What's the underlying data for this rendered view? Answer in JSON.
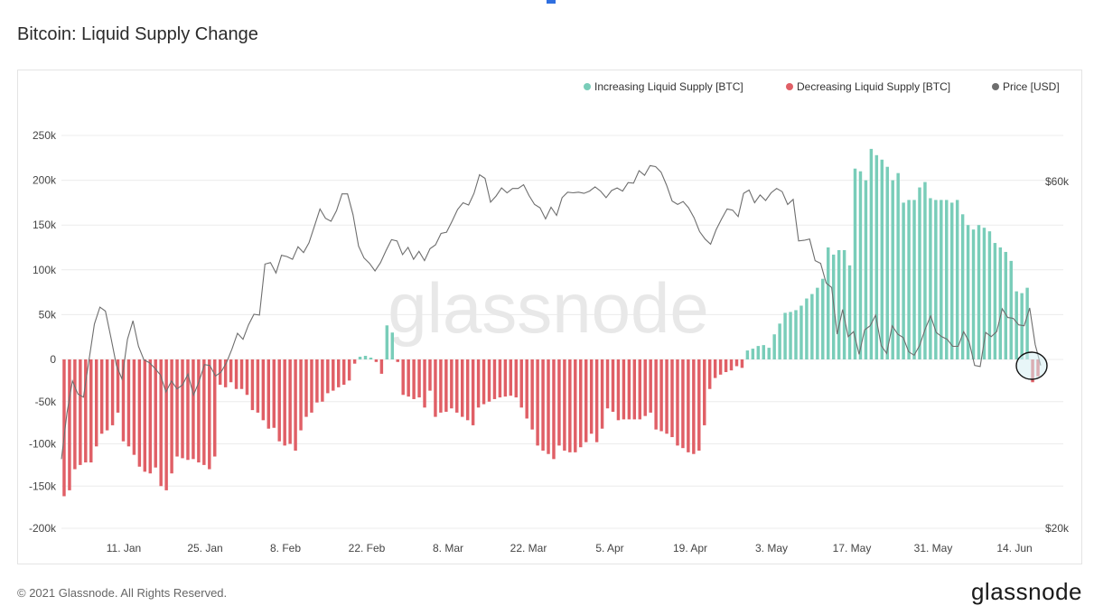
{
  "page": {
    "title": "Bitcoin: Liquid Supply Change",
    "copyright": "© 2021 Glassnode. All Rights Reserved.",
    "brand": "glassnode",
    "watermark": "glassnode"
  },
  "colors": {
    "increase": "#79cdb9",
    "decrease": "#e05f66",
    "price": "#6e6e6e",
    "grid": "#ececec",
    "highlight": "#d6eef3"
  },
  "chart_data": {
    "type": "bar",
    "title": "Bitcoin: Liquid Supply Change",
    "x_ticks": [
      "11. Jan",
      "25. Jan",
      "8. Feb",
      "22. Feb",
      "8. Mar",
      "22. Mar",
      "5. Apr",
      "19. Apr",
      "3. May",
      "17. May",
      "31. May",
      "14. Jun"
    ],
    "y_left": {
      "ticks": [
        "250k",
        "200k",
        "150k",
        "100k",
        "50k",
        "0",
        "-50k",
        "-100k",
        "-150k",
        "-200k"
      ],
      "range": [
        -200000,
        250000
      ]
    },
    "y_right": {
      "ticks": [
        "$60k",
        "$20k"
      ],
      "range": [
        20000,
        60000
      ],
      "scale": "log"
    },
    "legend": {
      "position": "top-right",
      "items": [
        "Increasing Liquid Supply [BTC]",
        "Decreasing Liquid Supply [BTC]",
        "Price [USD]"
      ]
    },
    "series": [
      {
        "name": "Liquid Supply Change [BTC]",
        "values": [
          -162000,
          -155000,
          -130000,
          -125000,
          -122000,
          -122000,
          -103000,
          -88000,
          -84000,
          -78000,
          -63000,
          -97000,
          -103000,
          -113000,
          -127000,
          -133000,
          -135000,
          -128000,
          -150000,
          -155000,
          -135000,
          -115000,
          -117000,
          -119000,
          -118000,
          -122000,
          -125000,
          -130000,
          -115000,
          -30000,
          -33000,
          -27000,
          -35000,
          -35000,
          -42000,
          -60000,
          -63000,
          -72000,
          -82000,
          -81000,
          -97000,
          -102000,
          -100000,
          -108000,
          -84000,
          -68000,
          -63000,
          -51000,
          -50000,
          -40000,
          -37000,
          -33000,
          -30000,
          -25000,
          -5000,
          3000,
          4000,
          2000,
          -3000,
          -17000,
          38000,
          30000,
          -3000,
          -42000,
          -44000,
          -47000,
          -45000,
          -57000,
          -37000,
          -68000,
          -63000,
          -62000,
          -58000,
          -63000,
          -68000,
          -72000,
          -78000,
          -57000,
          -53000,
          -50000,
          -47000,
          -45000,
          -44000,
          -43000,
          -45000,
          -57000,
          -70000,
          -83000,
          -102000,
          -108000,
          -112000,
          -118000,
          -102000,
          -108000,
          -110000,
          -110000,
          -104000,
          -98000,
          -88000,
          -98000,
          -82000,
          -58000,
          -62000,
          -72000,
          -71000,
          -71000,
          -71000,
          -71000,
          -67000,
          -63000,
          -83000,
          -85000,
          -88000,
          -92000,
          -102000,
          -105000,
          -110000,
          -112000,
          -108000,
          -78000,
          -35000,
          -22000,
          -18000,
          -15000,
          -13000,
          -8000,
          -10000,
          10000,
          12000,
          15000,
          16000,
          13000,
          28000,
          40000,
          52000,
          53000,
          55000,
          60000,
          68000,
          73000,
          80000,
          90000,
          125000,
          117000,
          122000,
          122000,
          105000,
          213000,
          210000,
          200000,
          235000,
          228000,
          223000,
          215000,
          200000,
          208000,
          175000,
          178000,
          178000,
          192000,
          198000,
          180000,
          178000,
          178000,
          178000,
          175000,
          178000,
          162000,
          150000,
          145000,
          150000,
          147000,
          143000,
          130000,
          125000,
          120000,
          110000,
          76000,
          74000,
          80000,
          -27000,
          -20000
        ]
      },
      {
        "name": "Price [USD]",
        "values": [
          24900,
          28800,
          31900,
          30600,
          30300,
          34000,
          38200,
          40300,
          39800,
          36600,
          33500,
          32100,
          36400,
          38600,
          35600,
          34100,
          33800,
          33200,
          32500,
          30800,
          31900,
          31100,
          31500,
          32600,
          30500,
          31800,
          33600,
          33500,
          32400,
          32800,
          33800,
          35300,
          37100,
          36400,
          38100,
          39400,
          39300,
          46200,
          46400,
          44900,
          47500,
          47300,
          46900,
          48800,
          47900,
          49400,
          52100,
          55000,
          53400,
          52900,
          54700,
          57700,
          57700,
          54000,
          48900,
          47100,
          46300,
          45200,
          46400,
          48200,
          49900,
          49700,
          47600,
          48700,
          46900,
          48100,
          46700,
          48500,
          49100,
          50900,
          51100,
          52900,
          54900,
          56100,
          55700,
          57800,
          61300,
          60600,
          56200,
          57300,
          58800,
          57900,
          58700,
          58700,
          59400,
          57400,
          55800,
          55200,
          53300,
          55300,
          53900,
          57000,
          58000,
          57900,
          58000,
          57800,
          58200,
          59000,
          58200,
          57000,
          58300,
          58800,
          58200,
          59800,
          59700,
          62100,
          61200,
          63100,
          62900,
          61800,
          59300,
          56400,
          55800,
          56300,
          55200,
          53500,
          51200,
          50000,
          49200,
          51500,
          53300,
          55000,
          54800,
          53700,
          57800,
          58400,
          56100,
          57500,
          56500,
          57900,
          58700,
          58100,
          55800,
          56700,
          49700,
          49800,
          50000,
          46700,
          46300,
          43500,
          42900,
          37000,
          40000,
          36700,
          37300,
          34700,
          37500,
          38000,
          39300,
          35700,
          34800,
          38000,
          37000,
          36600,
          35000,
          34600,
          35700,
          37600,
          39200,
          37200,
          36700,
          36400,
          35600,
          35600,
          37300,
          36100,
          33500,
          33400,
          37200,
          36700,
          37300,
          40100,
          39000,
          38900,
          38100,
          38000,
          40200,
          35800,
          33500
        ]
      }
    ]
  }
}
